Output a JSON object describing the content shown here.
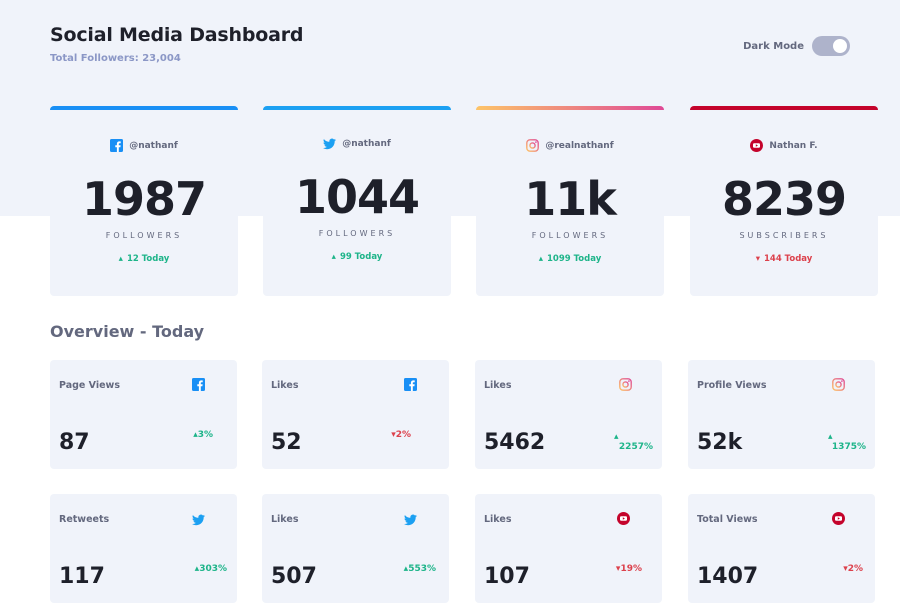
{
  "header": {
    "title": "Social Media Dashboard",
    "subtitle": "Total Followers: 23,004",
    "dark_mode_label": "Dark Mode"
  },
  "colors": {
    "facebook": "#198ff5",
    "twitter": "#1ca0f2",
    "instagram_gradient": [
      "#fdc468",
      "#df4996"
    ],
    "youtube": "#c4032b",
    "up": "#1db489",
    "down": "#dc414c"
  },
  "cards": [
    {
      "platform": "facebook",
      "icon": "facebook-icon",
      "handle": "@nathanf",
      "count": "1987",
      "unit": "Followers",
      "today": "12 Today",
      "trend": "up"
    },
    {
      "platform": "twitter",
      "icon": "twitter-icon",
      "handle": "@nathanf",
      "count": "1044",
      "unit": "Followers",
      "today": "99 Today",
      "trend": "up"
    },
    {
      "platform": "instagram",
      "icon": "instagram-icon",
      "handle": "@realnathanf",
      "count": "11k",
      "unit": "Followers",
      "today": "1099 Today",
      "trend": "up"
    },
    {
      "platform": "youtube",
      "icon": "youtube-icon",
      "handle": "Nathan F.",
      "count": "8239",
      "unit": "Subscribers",
      "today": "144 Today",
      "trend": "down"
    }
  ],
  "overview": {
    "title": "Overview - Today",
    "items": [
      {
        "label": "Page Views",
        "icon": "facebook-icon",
        "value": "87",
        "change": "3%",
        "trend": "up"
      },
      {
        "label": "Likes",
        "icon": "facebook-icon",
        "value": "52",
        "change": "2%",
        "trend": "down"
      },
      {
        "label": "Likes",
        "icon": "instagram-icon",
        "value": "5462",
        "change": "2257%",
        "trend": "up"
      },
      {
        "label": "Profile Views",
        "icon": "instagram-icon",
        "value": "52k",
        "change": "1375%",
        "trend": "up"
      },
      {
        "label": "Retweets",
        "icon": "twitter-icon",
        "value": "117",
        "change": "303%",
        "trend": "up"
      },
      {
        "label": "Likes",
        "icon": "twitter-icon",
        "value": "507",
        "change": "553%",
        "trend": "up"
      },
      {
        "label": "Likes",
        "icon": "youtube-icon",
        "value": "107",
        "change": "19%",
        "trend": "down"
      },
      {
        "label": "Total Views",
        "icon": "youtube-icon",
        "value": "1407",
        "change": "2%",
        "trend": "down"
      }
    ]
  }
}
